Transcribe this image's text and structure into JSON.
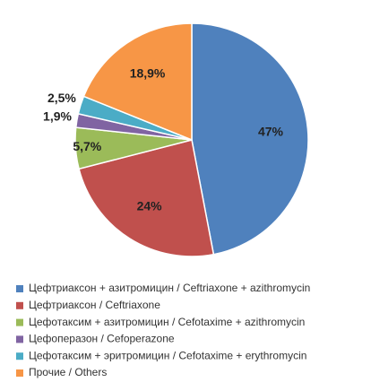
{
  "chart_data": {
    "type": "pie",
    "categories": [
      "Цефтриаксон + азитромицин / Ceftriaxone + azithromycin",
      "Цефтриаксон / Ceftriaxone",
      "Цефотаксим + азитромицин / Cefotaxime + azithromycin",
      "Цефоперазон / Cefoperazone",
      "Цефотаксим + эритромицин / Cefotaxime + erythromycin",
      "Прочие / Others"
    ],
    "values": [
      47,
      24,
      5.7,
      1.9,
      2.5,
      18.9
    ],
    "value_labels": [
      "47%",
      "24%",
      "5,7%",
      "1,9%",
      "2,5%",
      "18,9%"
    ],
    "colors": [
      "#4f81bd",
      "#c0504d",
      "#9bbb59",
      "#8064a2",
      "#4bacc6",
      "#f79646"
    ],
    "legend": "bottom"
  }
}
